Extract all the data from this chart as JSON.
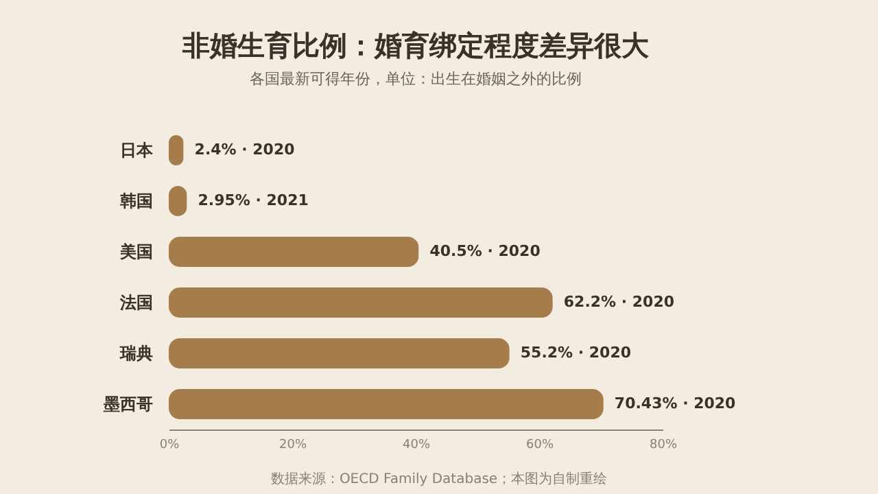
{
  "chart_data": {
    "type": "bar",
    "orientation": "horizontal",
    "title": "非婚生育比例：婚育绑定程度差异很大",
    "subtitle": "各国最新可得年份，单位：出生在婚姻之外的比例",
    "categories": [
      "日本",
      "韩国",
      "美国",
      "法国",
      "瑞典",
      "墨西哥"
    ],
    "values": [
      2.4,
      2.95,
      40.5,
      62.2,
      55.2,
      70.43
    ],
    "value_labels": [
      "2.4% · 2020",
      "2.95% · 2021",
      "40.5% · 2020",
      "62.2% · 2020",
      "55.2% · 2020",
      "70.43% · 2020"
    ],
    "color": "#a57c4a",
    "xlim": [
      0,
      80
    ],
    "xticks": [
      {
        "value": 0,
        "label": "0%"
      },
      {
        "value": 20,
        "label": "20%"
      },
      {
        "value": 40,
        "label": "40%"
      },
      {
        "value": 60,
        "label": "60%"
      },
      {
        "value": 80,
        "label": "80%"
      }
    ],
    "annotations": [
      "数据来源：OECD Family Database；本图为自制重绘"
    ],
    "grid": false
  }
}
